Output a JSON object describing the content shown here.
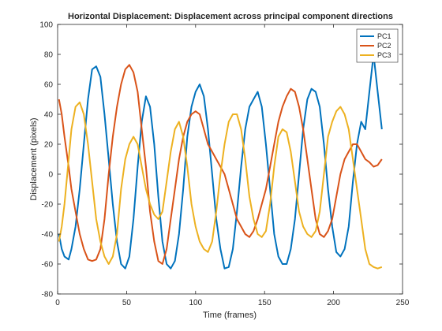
{
  "chart_data": {
    "type": "line",
    "title": "Horizontal Displacement: Displacement across principal component directions",
    "xlabel": "Time (frames)",
    "ylabel": "Displacement (pixels)",
    "xlim": [
      0,
      250
    ],
    "ylim": [
      -80,
      100
    ],
    "xticks": [
      0,
      50,
      100,
      150,
      200,
      250
    ],
    "yticks": [
      -80,
      -60,
      -40,
      -20,
      0,
      20,
      40,
      60,
      80,
      100
    ],
    "grid": false,
    "legend_position": "top-right",
    "series": [
      {
        "name": "PC1",
        "color": "#0072BD",
        "x": [
          1,
          3,
          5,
          8,
          10,
          13,
          16,
          19,
          22,
          25,
          28,
          31,
          34,
          37,
          40,
          43,
          46,
          49,
          52,
          55,
          58,
          61,
          64,
          67,
          70,
          73,
          76,
          79,
          82,
          85,
          88,
          91,
          94,
          97,
          100,
          103,
          106,
          109,
          112,
          115,
          118,
          121,
          124,
          127,
          130,
          133,
          136,
          139,
          142,
          145,
          148,
          151,
          154,
          157,
          160,
          163,
          166,
          169,
          172,
          175,
          178,
          181,
          184,
          187,
          190,
          193,
          196,
          199,
          202,
          205,
          208,
          211,
          214,
          217,
          220,
          223,
          226,
          229,
          232,
          235
        ],
        "y": [
          -40,
          -50,
          -55,
          -57,
          -50,
          -35,
          -10,
          20,
          50,
          70,
          72,
          65,
          40,
          10,
          -20,
          -45,
          -60,
          -63,
          -55,
          -30,
          5,
          35,
          52,
          45,
          20,
          -15,
          -45,
          -60,
          -63,
          -58,
          -40,
          -10,
          25,
          45,
          55,
          60,
          52,
          30,
          0,
          -30,
          -50,
          -63,
          -62,
          -50,
          -25,
          5,
          30,
          45,
          50,
          55,
          45,
          20,
          -10,
          -40,
          -55,
          -60,
          -60,
          -50,
          -30,
          0,
          30,
          50,
          57,
          55,
          45,
          20,
          -10,
          -35,
          -52,
          -55,
          -50,
          -35,
          -5,
          20,
          35,
          30,
          55,
          80,
          55,
          30
        ]
      },
      {
        "name": "PC2",
        "color": "#D95319",
        "x": [
          1,
          3,
          5,
          8,
          10,
          13,
          16,
          19,
          22,
          25,
          28,
          31,
          34,
          37,
          40,
          43,
          46,
          49,
          52,
          55,
          58,
          61,
          64,
          67,
          70,
          73,
          76,
          79,
          82,
          85,
          88,
          91,
          94,
          97,
          100,
          103,
          106,
          109,
          112,
          115,
          118,
          121,
          124,
          127,
          130,
          133,
          136,
          139,
          142,
          145,
          148,
          151,
          154,
          157,
          160,
          163,
          166,
          169,
          172,
          175,
          178,
          181,
          184,
          187,
          190,
          193,
          196,
          199,
          202,
          205,
          208,
          211,
          214,
          217,
          220,
          223,
          226,
          229,
          232,
          235
        ],
        "y": [
          50,
          40,
          25,
          5,
          -10,
          -25,
          -40,
          -50,
          -57,
          -58,
          -57,
          -50,
          -30,
          0,
          25,
          45,
          60,
          70,
          73,
          68,
          55,
          30,
          5,
          -25,
          -45,
          -58,
          -60,
          -50,
          -30,
          -10,
          10,
          25,
          35,
          40,
          42,
          40,
          30,
          20,
          15,
          10,
          5,
          0,
          -10,
          -20,
          -30,
          -35,
          -40,
          -42,
          -38,
          -30,
          -20,
          -10,
          5,
          20,
          35,
          45,
          52,
          57,
          55,
          45,
          30,
          10,
          -10,
          -30,
          -40,
          -42,
          -38,
          -30,
          -15,
          0,
          10,
          15,
          20,
          20,
          15,
          10,
          8,
          5,
          6,
          10
        ]
      },
      {
        "name": "PC3",
        "color": "#EDB120",
        "x": [
          1,
          3,
          5,
          8,
          10,
          13,
          16,
          19,
          22,
          25,
          28,
          31,
          34,
          37,
          40,
          43,
          46,
          49,
          52,
          55,
          58,
          61,
          64,
          67,
          70,
          73,
          76,
          79,
          82,
          85,
          88,
          91,
          94,
          97,
          100,
          103,
          106,
          109,
          112,
          115,
          118,
          121,
          124,
          127,
          130,
          133,
          136,
          139,
          142,
          145,
          148,
          151,
          154,
          157,
          160,
          163,
          166,
          169,
          172,
          175,
          178,
          181,
          184,
          187,
          190,
          193,
          196,
          199,
          202,
          205,
          208,
          211,
          214,
          217,
          220,
          223,
          226,
          229,
          232,
          235
        ],
        "y": [
          -45,
          -35,
          -20,
          10,
          30,
          45,
          48,
          40,
          20,
          -5,
          -30,
          -45,
          -55,
          -60,
          -55,
          -40,
          -10,
          10,
          20,
          25,
          20,
          5,
          -10,
          -20,
          -27,
          -30,
          -25,
          -5,
          15,
          30,
          35,
          25,
          5,
          -20,
          -35,
          -45,
          -50,
          -52,
          -45,
          -25,
          0,
          20,
          35,
          40,
          40,
          30,
          10,
          -15,
          -30,
          -40,
          -42,
          -38,
          -20,
          5,
          25,
          30,
          28,
          15,
          -5,
          -25,
          -35,
          -40,
          -42,
          -38,
          -25,
          0,
          25,
          35,
          42,
          45,
          40,
          30,
          10,
          -10,
          -30,
          -50,
          -60,
          -62,
          -63,
          -62
        ]
      }
    ]
  }
}
